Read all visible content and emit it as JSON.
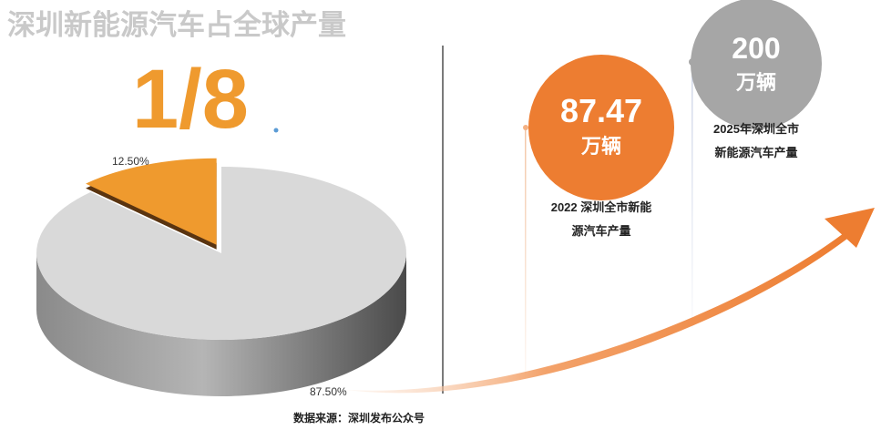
{
  "chart_data": {
    "type": "pie",
    "title": "深圳新能源汽车占全球产量",
    "headline": "1/8",
    "categories": [
      null,
      null
    ],
    "values": [
      12.5,
      87.5
    ],
    "value_labels": [
      "12.50%",
      "87.50%"
    ],
    "colors": [
      "#ef9a2e",
      "#d9d9d9"
    ],
    "source": "数据来源：深圳发布公众号"
  },
  "callouts": [
    {
      "value": 87.47,
      "unit": "万辆",
      "caption_lines": [
        "2022 深圳全市新能",
        "源汽车产量"
      ],
      "color": "#ed7d31"
    },
    {
      "value": 200,
      "unit": "万辆",
      "caption_lines": [
        "2025年深圳全市",
        "新能源汽车产量"
      ],
      "color": "#a6a6a6"
    }
  ]
}
